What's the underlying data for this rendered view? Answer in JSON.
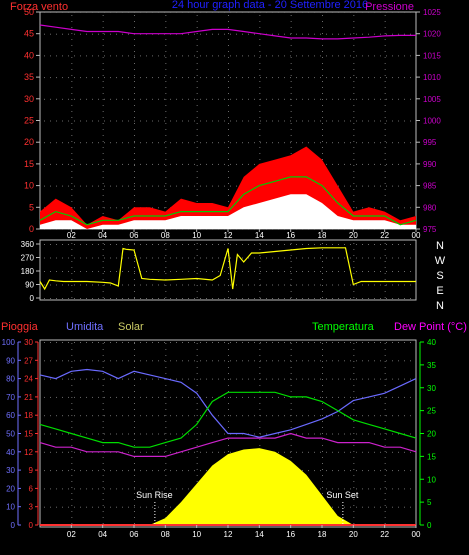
{
  "top_panel": {
    "left_title": "Forza vento",
    "center_title": "24 hour graph data - 20 Settembre 2016",
    "right_title": "Pressione",
    "colors": {
      "gust": "#ff0000",
      "avg": "#00cc00",
      "wind": "#ffffff",
      "pressure": "#cc00cc",
      "left_axis": "#ff3030",
      "right_axis": "#cc00cc",
      "title_center": "#2020ff",
      "grid": "#6a6a6a"
    }
  },
  "direction_panel": {
    "compass_labels": [
      "N",
      "W",
      "S",
      "E",
      "N"
    ],
    "colors": {
      "direction": "#ffff00"
    }
  },
  "bottom_panel": {
    "labels": {
      "rain": "Pioggia",
      "humidity": "Umidita",
      "solar": "Solar",
      "temperature": "Temperatura",
      "dewpoint": "Dew Point (°C)",
      "sunrise": "Sun Rise",
      "sunset": "Sun Set"
    },
    "colors": {
      "rain": "#ff3030",
      "humidity": "#7070ff",
      "solar": "#ffff00",
      "temperature": "#00ff00",
      "dewpoint": "#ff00ff",
      "hum_line": "#6a6aff",
      "temp_line": "#00dd00",
      "dew_line": "#cc22cc"
    }
  },
  "x_axis": {
    "labels": [
      "02",
      "04",
      "06",
      "08",
      "10",
      "12",
      "14",
      "16",
      "18",
      "20",
      "22",
      "00"
    ]
  },
  "chart_data": [
    {
      "type": "line",
      "title": "24 hour graph data - 20 Settembre 2016",
      "x_hours": [
        0,
        1,
        2,
        3,
        4,
        5,
        6,
        7,
        8,
        9,
        10,
        11,
        12,
        13,
        14,
        15,
        16,
        17,
        18,
        19,
        20,
        21,
        22,
        23,
        24
      ],
      "y_left_label": "Forza vento",
      "y_left_ticks": [
        "0",
        "5",
        "10",
        "15",
        "20",
        "25",
        "30",
        "35",
        "40",
        "45",
        "50"
      ],
      "y_left_lim": [
        0,
        50
      ],
      "y_right_label": "Pressione",
      "y_right_ticks": [
        "975",
        "980",
        "985",
        "990",
        "995",
        "1000",
        "1005",
        "1010",
        "1015",
        "1020",
        "1025"
      ],
      "y_right_lim": [
        975,
        1025
      ],
      "series": [
        {
          "name": "gust",
          "values": [
            4,
            7,
            5,
            1,
            3,
            2,
            5,
            5,
            4,
            7,
            6,
            6,
            5,
            12,
            15,
            16,
            17,
            19,
            16,
            10,
            4,
            5,
            4,
            2,
            3
          ]
        },
        {
          "name": "avg",
          "values": [
            2,
            4,
            3,
            1,
            2,
            2,
            3,
            3,
            3,
            4,
            4,
            4,
            4,
            8,
            10,
            11,
            12,
            12,
            10,
            6,
            3,
            3,
            3,
            1,
            2
          ]
        },
        {
          "name": "wind",
          "values": [
            1,
            2,
            2,
            0,
            1,
            1,
            2,
            2,
            2,
            3,
            3,
            3,
            3,
            5,
            6,
            7,
            8,
            8,
            6,
            3,
            2,
            2,
            2,
            1,
            1
          ]
        },
        {
          "name": "pressure",
          "values": [
            1022,
            1021.5,
            1021,
            1020.5,
            1020.5,
            1020.5,
            1020,
            1020,
            1020,
            1020,
            1020.5,
            1021,
            1021,
            1020.5,
            1020,
            1019.5,
            1019,
            1019,
            1018.8,
            1018.8,
            1019,
            1019.2,
            1019.5,
            1019.6,
            1019.6
          ]
        }
      ]
    },
    {
      "type": "line",
      "ylabel_ticks": [
        "0",
        "90",
        "180",
        "270",
        "360"
      ],
      "ylim": [
        0,
        360
      ],
      "x_hours": [
        0,
        0.3,
        0.6,
        1,
        1.5,
        2,
        3,
        4,
        4.5,
        5,
        5.3,
        5.5,
        6,
        6.5,
        7,
        8,
        9,
        10,
        11,
        11.5,
        12,
        12.3,
        12.6,
        13,
        13.5,
        14,
        15,
        16,
        17,
        18,
        19,
        19.5,
        20,
        20.5,
        21,
        22,
        23,
        24
      ],
      "series": [
        {
          "name": "direction",
          "values": [
            110,
            60,
            120,
            115,
            110,
            110,
            110,
            105,
            100,
            80,
            330,
            325,
            320,
            130,
            125,
            120,
            125,
            130,
            120,
            150,
            330,
            60,
            290,
            240,
            300,
            300,
            310,
            320,
            330,
            335,
            335,
            335,
            90,
            110,
            110,
            110,
            110,
            110
          ]
        }
      ]
    },
    {
      "type": "line",
      "x_hours": [
        0,
        1,
        2,
        3,
        4,
        5,
        6,
        7,
        8,
        9,
        10,
        11,
        12,
        13,
        14,
        15,
        16,
        17,
        18,
        19,
        20,
        21,
        22,
        23,
        24
      ],
      "y_left_outer_label": "Umidita",
      "y_left_outer_ticks": [
        "0",
        "10",
        "20",
        "30",
        "40",
        "50",
        "60",
        "70",
        "80",
        "90",
        "100"
      ],
      "y_left_inner_label": "Pioggia",
      "y_left_inner_ticks": [
        "0",
        "3",
        "6",
        "9",
        "12",
        "15",
        "18",
        "21",
        "24",
        "27",
        "30"
      ],
      "y_right_label": "Temperatura",
      "y_right_ticks": [
        "0",
        "5",
        "10",
        "15",
        "20",
        "25",
        "30",
        "35",
        "40"
      ],
      "sunrise_hour": 7.3,
      "sunset_hour": 19.3,
      "series": [
        {
          "name": "humidity",
          "values": [
            82,
            80,
            84,
            85,
            84,
            80,
            84,
            82,
            80,
            78,
            72,
            60,
            50,
            50,
            48,
            50,
            52,
            55,
            58,
            62,
            68,
            70,
            72,
            76,
            80
          ]
        },
        {
          "name": "temperature",
          "values": [
            22,
            21,
            20,
            19,
            18,
            18,
            17,
            17,
            18,
            19,
            22,
            27,
            29,
            29,
            29,
            29,
            28,
            28,
            27,
            25,
            23,
            22,
            21,
            20,
            19
          ]
        },
        {
          "name": "dewpoint",
          "values": [
            18,
            17,
            17,
            16,
            16,
            16,
            15,
            15,
            15,
            16,
            17,
            18,
            19,
            19,
            19,
            19,
            20,
            19,
            19,
            18,
            18,
            18,
            17,
            17,
            16
          ]
        },
        {
          "name": "solar",
          "values": [
            0,
            0,
            0,
            0,
            0,
            0,
            0,
            0,
            1.5,
            5,
            9,
            13,
            15.5,
            16.5,
            16.8,
            16,
            14,
            11,
            6.5,
            2,
            0,
            0,
            0,
            0,
            0
          ]
        },
        {
          "name": "rain",
          "values": [
            0,
            0,
            0,
            0,
            0,
            0,
            0,
            0,
            0,
            0,
            0,
            0,
            0,
            0,
            0,
            0,
            0,
            0,
            0,
            0,
            0,
            0,
            0,
            0,
            0
          ]
        }
      ]
    }
  ]
}
